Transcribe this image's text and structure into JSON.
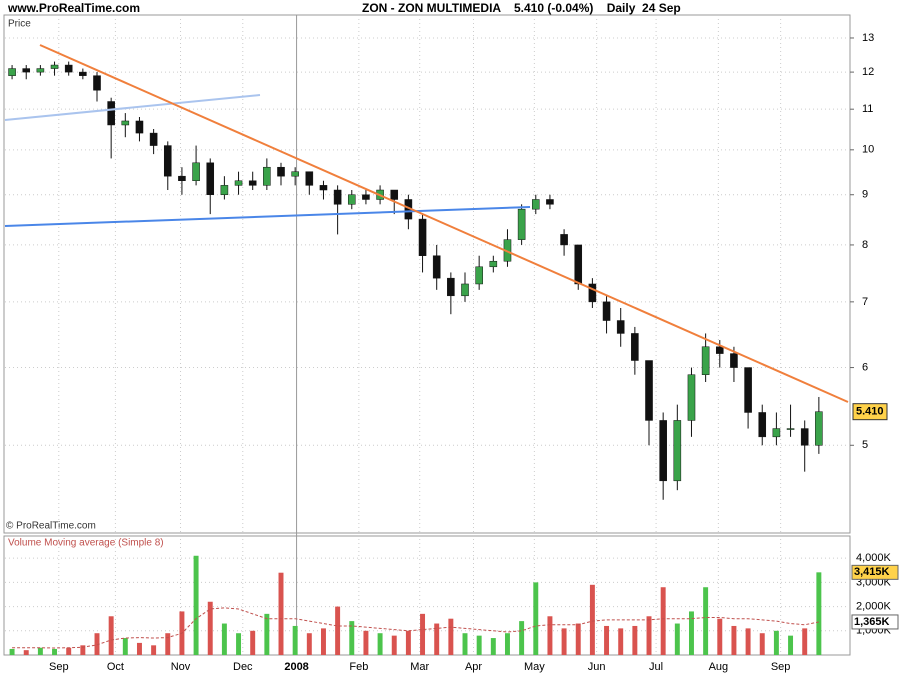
{
  "chart_data": [
    {
      "type": "candlestick",
      "source": "www.ProRealTime.com",
      "title": "ZON - ZON MULTIMEDIA    5.410 (-0.04%)    Daily  24 Sep",
      "panel_label": "Price",
      "copyright": "© ProRealTime.com",
      "log_scale": true,
      "grid": true,
      "up_color": "#3aa34a",
      "down_color": "#111111",
      "wick_color": "#111111",
      "x": [
        0,
        1,
        2,
        3,
        4,
        5,
        6,
        7,
        8,
        9,
        10,
        11,
        12,
        13,
        14,
        15,
        16,
        17,
        18,
        19,
        20,
        21,
        22,
        23,
        24,
        25,
        26,
        27,
        28,
        29,
        30,
        31,
        32,
        33,
        34,
        35,
        36,
        37,
        38,
        39,
        40,
        41,
        42,
        43,
        44,
        45,
        46,
        47,
        48,
        49,
        50,
        51,
        52,
        53,
        54,
        55,
        56,
        57
      ],
      "open": [
        11.9,
        12.1,
        12.0,
        12.1,
        12.2,
        12.0,
        11.9,
        11.2,
        10.6,
        10.7,
        10.4,
        10.1,
        9.4,
        9.3,
        9.7,
        9.0,
        9.2,
        9.3,
        9.2,
        9.6,
        9.4,
        9.5,
        9.2,
        9.1,
        8.8,
        9.0,
        8.9,
        9.1,
        8.9,
        8.5,
        7.8,
        7.4,
        7.1,
        7.3,
        7.6,
        7.7,
        8.1,
        8.7,
        8.9,
        8.2,
        8.0,
        7.3,
        7.0,
        6.7,
        6.5,
        6.1,
        5.3,
        4.6,
        5.3,
        5.9,
        6.3,
        6.2,
        6.0,
        5.4,
        5.1,
        5.2,
        5.2,
        5.0
      ],
      "high": [
        12.2,
        12.2,
        12.2,
        12.3,
        12.3,
        12.1,
        12.0,
        11.3,
        10.9,
        10.8,
        10.5,
        10.2,
        9.6,
        10.1,
        9.8,
        9.4,
        9.5,
        9.5,
        9.8,
        9.7,
        9.6,
        9.5,
        9.3,
        9.2,
        9.1,
        9.1,
        9.2,
        9.1,
        9.0,
        8.6,
        8.0,
        7.5,
        7.5,
        7.8,
        7.8,
        8.3,
        8.8,
        9.0,
        9.0,
        8.3,
        8.0,
        7.4,
        7.1,
        6.9,
        6.6,
        6.1,
        5.4,
        5.5,
        6.0,
        6.5,
        6.4,
        6.3,
        6.0,
        5.5,
        5.4,
        5.5,
        5.3,
        5.6
      ],
      "low": [
        11.8,
        11.8,
        11.9,
        11.9,
        11.9,
        11.8,
        11.2,
        9.8,
        10.3,
        10.2,
        9.9,
        9.1,
        9.0,
        9.2,
        8.6,
        8.9,
        9.0,
        9.1,
        9.1,
        9.2,
        9.2,
        9.0,
        8.9,
        8.2,
        8.7,
        8.8,
        8.8,
        8.6,
        8.3,
        7.5,
        7.2,
        6.8,
        7.0,
        7.2,
        7.5,
        7.6,
        8.0,
        8.6,
        8.7,
        7.8,
        7.2,
        6.9,
        6.5,
        6.3,
        5.9,
        5.0,
        4.4,
        4.5,
        5.1,
        5.8,
        6.0,
        5.8,
        5.2,
        5.0,
        5.0,
        5.1,
        4.7,
        4.9
      ],
      "close": [
        12.1,
        12.0,
        12.1,
        12.2,
        12.0,
        11.9,
        11.5,
        10.6,
        10.7,
        10.4,
        10.1,
        9.4,
        9.3,
        9.7,
        9.0,
        9.2,
        9.3,
        9.2,
        9.6,
        9.4,
        9.5,
        9.2,
        9.1,
        8.8,
        9.0,
        8.9,
        9.1,
        8.9,
        8.5,
        7.8,
        7.4,
        7.1,
        7.3,
        7.6,
        7.7,
        8.1,
        8.7,
        8.9,
        8.8,
        8.0,
        7.3,
        7.0,
        6.7,
        6.5,
        6.1,
        5.3,
        4.6,
        5.3,
        5.9,
        6.3,
        6.2,
        6.0,
        5.4,
        5.1,
        5.2,
        5.2,
        5.0,
        5.41
      ],
      "price_badge": {
        "value": 5.41,
        "label": "5.410"
      },
      "xlim": [
        -0.5,
        59.2
      ],
      "xticks": [
        {
          "value": 3.3,
          "label": "Sep"
        },
        {
          "value": 7.3,
          "label": "Oct"
        },
        {
          "value": 11.9,
          "label": "Nov"
        },
        {
          "value": 16.3,
          "label": "Dec"
        },
        {
          "value": 20.1,
          "label": "2008"
        },
        {
          "value": 24.5,
          "label": "Feb"
        },
        {
          "value": 28.8,
          "label": "Mar"
        },
        {
          "value": 32.6,
          "label": "Apr"
        },
        {
          "value": 36.9,
          "label": "May"
        },
        {
          "value": 41.3,
          "label": "Jun"
        },
        {
          "value": 45.5,
          "label": "Jul"
        },
        {
          "value": 49.9,
          "label": "Aug"
        },
        {
          "value": 54.3,
          "label": "Sep"
        }
      ],
      "ylim": [
        4.07,
        13.72
      ],
      "yticks": [
        5,
        6,
        7,
        8,
        9,
        10,
        11,
        12,
        13
      ]
    },
    {
      "type": "bar",
      "panel_label": "Volume Moving average (Simple 8)",
      "grid": true,
      "up_color": "#4cc44c",
      "down_color": "#d9534f",
      "x": [
        0,
        1,
        2,
        3,
        4,
        5,
        6,
        7,
        8,
        9,
        10,
        11,
        12,
        13,
        14,
        15,
        16,
        17,
        18,
        19,
        20,
        21,
        22,
        23,
        24,
        25,
        26,
        27,
        28,
        29,
        30,
        31,
        32,
        33,
        34,
        35,
        36,
        37,
        38,
        39,
        40,
        41,
        42,
        43,
        44,
        45,
        46,
        47,
        48,
        49,
        50,
        51,
        52,
        53,
        54,
        55,
        56,
        57
      ],
      "values": [
        250,
        200,
        300,
        250,
        300,
        400,
        900,
        1600,
        700,
        500,
        400,
        900,
        1800,
        4100,
        2200,
        1300,
        900,
        1000,
        1700,
        3400,
        1200,
        900,
        1100,
        2000,
        1400,
        1000,
        900,
        800,
        1000,
        1700,
        1300,
        1500,
        900,
        800,
        700,
        900,
        1400,
        3000,
        1600,
        1100,
        1300,
        2900,
        1200,
        1100,
        1200,
        1600,
        2800,
        1300,
        1800,
        2800,
        1500,
        1200,
        1100,
        900,
        1000,
        800,
        1100,
        3415
      ],
      "moving_average": {
        "color": "#c0504d",
        "values": [
          300,
          300,
          300,
          290,
          300,
          320,
          420,
          620,
          700,
          720,
          700,
          720,
          900,
          1500,
          1900,
          1950,
          1900,
          1700,
          1500,
          1500,
          1500,
          1400,
          1300,
          1200,
          1200,
          1150,
          1100,
          1050,
          1000,
          1050,
          1100,
          1150,
          1100,
          1050,
          1000,
          950,
          1000,
          1200,
          1250,
          1250,
          1250,
          1400,
          1450,
          1450,
          1450,
          1450,
          1500,
          1500,
          1500,
          1550,
          1550,
          1500,
          1500,
          1450,
          1400,
          1300,
          1250,
          1365
        ]
      },
      "volume_badge": {
        "value": 3415,
        "label": "3,415K"
      },
      "ma_badge": {
        "value": 1365,
        "label": "1,365K"
      },
      "xlim": [
        -0.5,
        59.2
      ],
      "ylim": [
        0,
        4875
      ],
      "yticks": [
        {
          "value": 1000,
          "label": "1,000K"
        },
        {
          "value": 2000,
          "label": "2,000K"
        },
        {
          "value": 3000,
          "label": "3,000K"
        },
        {
          "value": 4000,
          "label": "4,000K"
        }
      ]
    }
  ]
}
